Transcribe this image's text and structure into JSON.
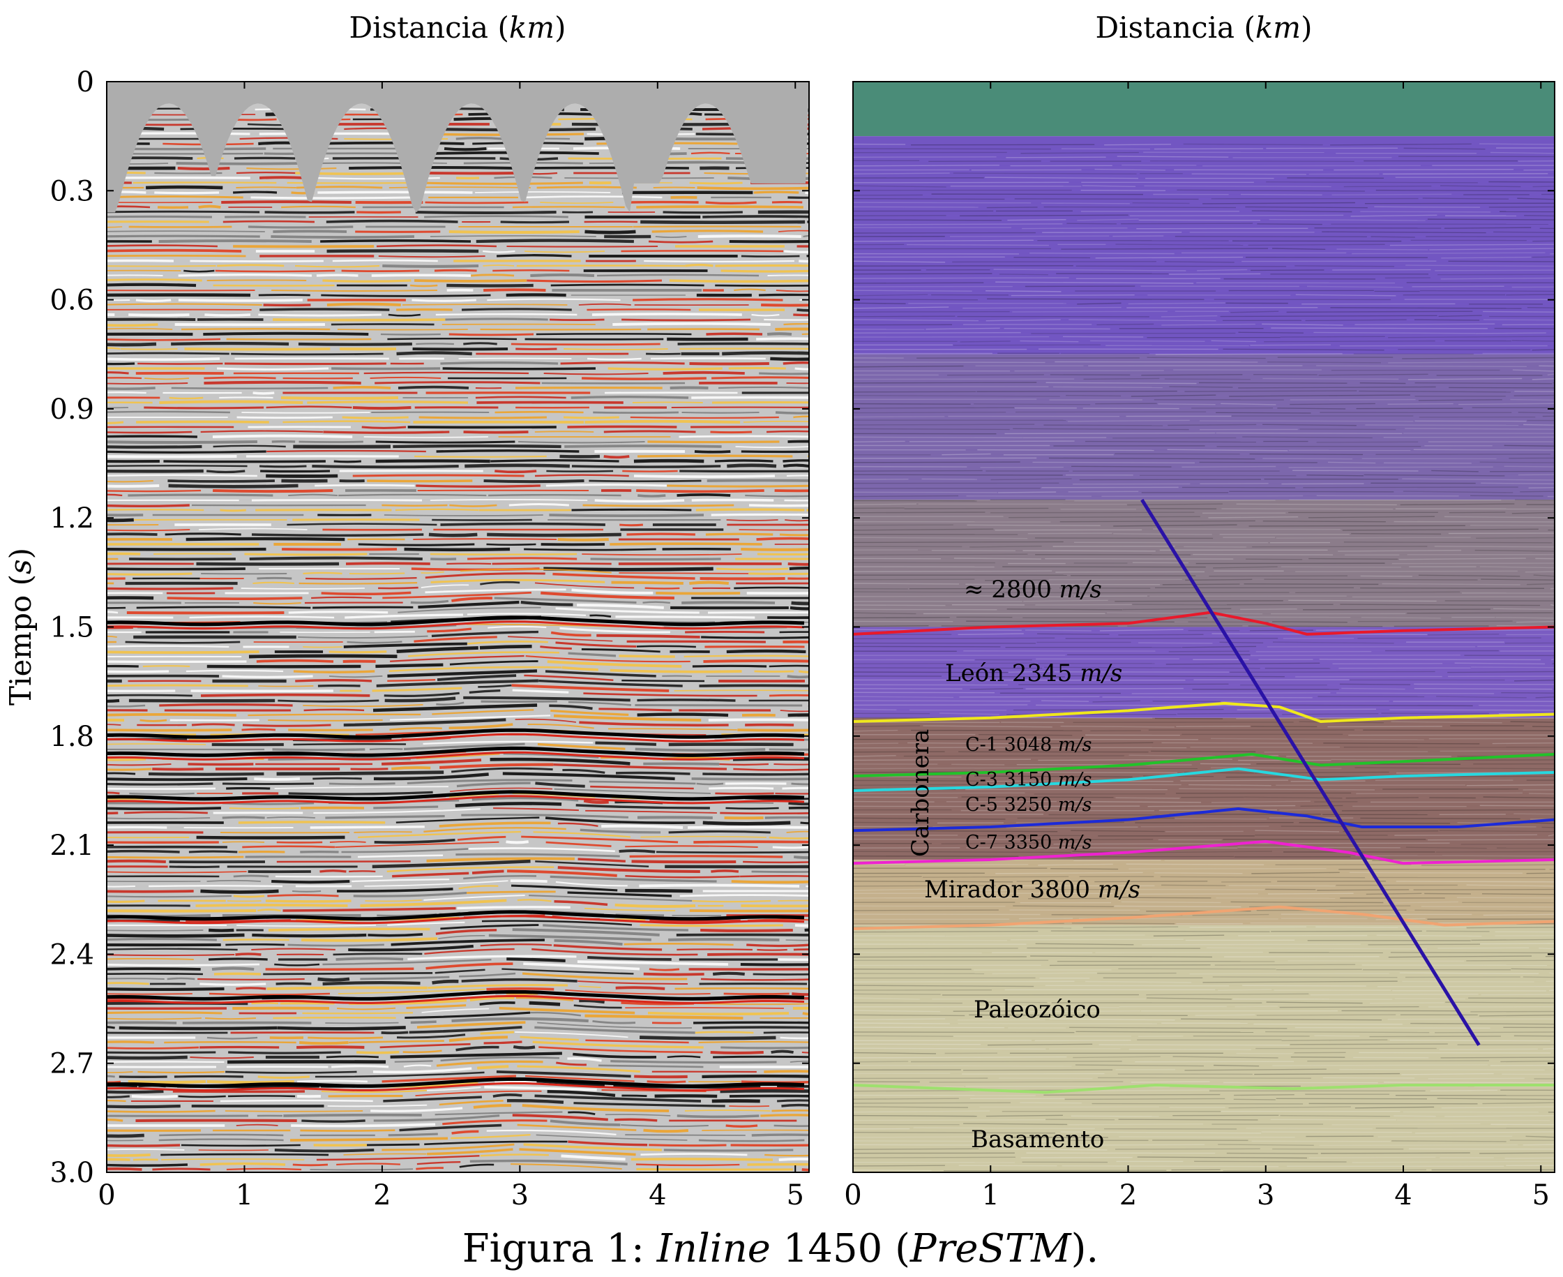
{
  "figure": {
    "caption_prefix": "Figura 1:",
    "caption_italic": "Inline",
    "caption_number": "1450",
    "caption_paren_open": "(",
    "caption_method": "PreSTM",
    "caption_paren_close": ")."
  },
  "chart_data": [
    {
      "type": "heatmap",
      "panel": "left",
      "description_of_content": "",
      "xlabel": "Distancia",
      "xlabel_unit": "km",
      "ylabel": "Tiempo",
      "ylabel_unit": "s",
      "xlim": [
        0,
        5.1
      ],
      "ylim": [
        0,
        3.0
      ],
      "x_ticks": [
        0,
        1,
        2,
        3,
        4,
        5
      ],
      "x_tick_labels": [
        "0",
        "1",
        "2",
        "3",
        "4",
        "5"
      ],
      "y_ticks": [
        0,
        0.3,
        0.6,
        0.9,
        1.2,
        1.5,
        1.8,
        2.1,
        2.4,
        2.7,
        3.0
      ],
      "y_tick_labels": [
        "0",
        "0.3",
        "0.6",
        "0.9",
        "1.2",
        "1.5",
        "1.8",
        "2.1",
        "2.4",
        "2.7",
        "3.0"
      ],
      "y_inverted": true
    },
    {
      "type": "heatmap",
      "panel": "right",
      "xlabel": "Distancia",
      "xlabel_unit": "km",
      "xlim": [
        0,
        5.1
      ],
      "ylim": [
        0,
        3.0
      ],
      "x_ticks": [
        0,
        1,
        2,
        3,
        4,
        5
      ],
      "x_tick_labels": [
        "0",
        "1",
        "2",
        "3",
        "4",
        "5"
      ],
      "y_ticks": [
        0.3,
        0.6,
        0.9,
        1.2,
        1.5,
        1.8,
        2.1,
        2.4,
        2.7
      ],
      "y_inverted": true,
      "horizons": [
        {
          "color": "#e8192b",
          "points": [
            [
              0,
              1.52
            ],
            [
              1,
              1.5
            ],
            [
              2,
              1.49
            ],
            [
              2.6,
              1.46
            ],
            [
              3.0,
              1.49
            ],
            [
              3.3,
              1.52
            ],
            [
              4,
              1.51
            ],
            [
              5.1,
              1.5
            ]
          ]
        },
        {
          "color": "#f0e81c",
          "points": [
            [
              0,
              1.76
            ],
            [
              1,
              1.75
            ],
            [
              2,
              1.73
            ],
            [
              2.7,
              1.71
            ],
            [
              3.1,
              1.72
            ],
            [
              3.4,
              1.76
            ],
            [
              4,
              1.75
            ],
            [
              5.1,
              1.74
            ]
          ]
        },
        {
          "color": "#22c22a",
          "points": [
            [
              0,
              1.91
            ],
            [
              1,
              1.9
            ],
            [
              2,
              1.88
            ],
            [
              2.9,
              1.85
            ],
            [
              3.4,
              1.88
            ],
            [
              4,
              1.87
            ],
            [
              5.1,
              1.85
            ]
          ]
        },
        {
          "color": "#27d8e0",
          "points": [
            [
              0,
              1.95
            ],
            [
              1,
              1.94
            ],
            [
              2,
              1.92
            ],
            [
              2.8,
              1.89
            ],
            [
              3.4,
              1.92
            ],
            [
              4,
              1.91
            ],
            [
              5.1,
              1.9
            ]
          ]
        },
        {
          "color": "#1c2ad8",
          "points": [
            [
              0,
              2.06
            ],
            [
              1,
              2.05
            ],
            [
              2,
              2.03
            ],
            [
              2.8,
              2.0
            ],
            [
              3.3,
              2.02
            ],
            [
              3.7,
              2.05
            ],
            [
              4.4,
              2.05
            ],
            [
              5.1,
              2.03
            ]
          ]
        },
        {
          "color": "#ee22d0",
          "points": [
            [
              0,
              2.15
            ],
            [
              1,
              2.14
            ],
            [
              2,
              2.12
            ],
            [
              3.0,
              2.09
            ],
            [
              3.6,
              2.12
            ],
            [
              4.0,
              2.15
            ],
            [
              5.1,
              2.14
            ]
          ]
        },
        {
          "color": "#f0a472",
          "points": [
            [
              0,
              2.33
            ],
            [
              1,
              2.32
            ],
            [
              2,
              2.3
            ],
            [
              3.1,
              2.27
            ],
            [
              3.7,
              2.29
            ],
            [
              4.3,
              2.32
            ],
            [
              5.1,
              2.31
            ]
          ]
        },
        {
          "color": "#9ee06e",
          "points": [
            [
              0,
              2.76
            ],
            [
              1.4,
              2.78
            ],
            [
              2.2,
              2.76
            ],
            [
              3.2,
              2.77
            ],
            [
              4.0,
              2.76
            ],
            [
              5.1,
              2.76
            ]
          ]
        }
      ],
      "fault": {
        "color": "#2a12a6",
        "points": [
          [
            2.1,
            1.15
          ],
          [
            4.55,
            2.65
          ]
        ]
      },
      "layer_bands": [
        {
          "color": "#4a8c78",
          "top": 0.0,
          "bottom": 0.15
        },
        {
          "color": "#7256c2",
          "top": 0.15,
          "bottom": 0.75
        },
        {
          "color": "#7c67ac",
          "top": 0.75,
          "bottom": 1.15
        },
        {
          "color": "#8b7c8a",
          "top": 1.15,
          "bottom": 1.5
        },
        {
          "color": "#7a5cc2",
          "top": 1.5,
          "bottom": 1.75
        },
        {
          "color": "#8e6a66",
          "top": 1.75,
          "bottom": 2.14
        },
        {
          "color": "#c4b08c",
          "top": 2.14,
          "bottom": 2.32
        },
        {
          "color": "#cdc8a4",
          "top": 2.32,
          "bottom": 3.0
        }
      ],
      "annotations": {
        "v_top": "≈ 2800",
        "v_top_unit": "m/s",
        "leon_name": "León",
        "leon_v": "2345",
        "leon_unit": "m/s",
        "carbonera": "Carbonera",
        "c1_name": "C-1",
        "c1_v": "3048",
        "c1_unit": "m/s",
        "c3_name": "C-3",
        "c3_v": "3150",
        "c3_unit": "m/s",
        "c5_name": "C-5",
        "c5_v": "3250",
        "c5_unit": "m/s",
        "c7_name": "C-7",
        "c7_v": "3350",
        "c7_unit": "m/s",
        "mirador_name": "Mirador",
        "mirador_v": "3800",
        "mirador_unit": "m/s",
        "paleozoico": "Paleozóico",
        "basamento": "Basamento"
      }
    }
  ]
}
